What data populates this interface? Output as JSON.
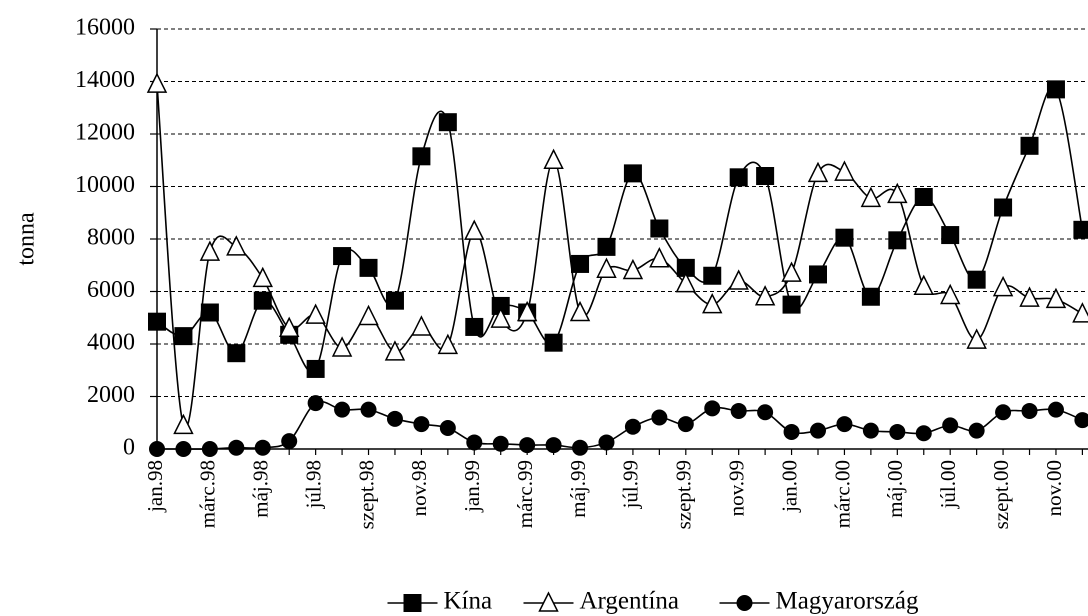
{
  "chart_data": {
    "type": "line",
    "y_label": "tonna",
    "categories": [
      "jan.98",
      null,
      "márc.98",
      null,
      "máj.98",
      null,
      "júl.98",
      null,
      "szept.98",
      null,
      "nov.98",
      null,
      "jan.99",
      null,
      "márc.99",
      null,
      "máj.99",
      null,
      "júl.99",
      null,
      "szept.99",
      null,
      "nov.99",
      null,
      "jan.00",
      null,
      "márc.00",
      null,
      "máj.00",
      null,
      "júl.00",
      null,
      "szept.00",
      null,
      "nov.00",
      null
    ],
    "series": [
      {
        "name": "Kína",
        "color": "#000000",
        "marker": "square",
        "values": [
          4850,
          4300,
          5200,
          3650,
          5650,
          4350,
          3050,
          7350,
          6900,
          5650,
          11150,
          12450,
          4650,
          5450,
          5200,
          4050,
          7050,
          7700,
          10500,
          8400,
          6900,
          6600,
          10350,
          10400,
          5500,
          6650,
          8050,
          5800,
          7950,
          9600,
          8150,
          6450,
          9200,
          11550,
          13700,
          8350
        ]
      },
      {
        "name": "Argentína",
        "color": "#000000",
        "marker": "triangle",
        "values": [
          13900,
          900,
          7500,
          7700,
          6500,
          4600,
          5100,
          3850,
          5050,
          3700,
          4650,
          3950,
          8300,
          4950,
          5200,
          11000,
          5200,
          6850,
          6800,
          7250,
          6300,
          5500,
          6400,
          5800,
          6700,
          10500,
          10550,
          9550,
          9700,
          6200,
          5850,
          4150,
          6150,
          5750,
          5700,
          5150
        ]
      },
      {
        "name": "Magyarország",
        "color": "#000000",
        "marker": "circle",
        "values": [
          0,
          0,
          0,
          50,
          50,
          300,
          1750,
          1500,
          1500,
          1150,
          950,
          800,
          250,
          200,
          150,
          150,
          50,
          250,
          850,
          1200,
          950,
          1550,
          1450,
          1400,
          650,
          700,
          950,
          700,
          650,
          600,
          900,
          700,
          1400,
          1450,
          1500,
          1100
        ]
      }
    ],
    "ylim": [
      0,
      16000
    ],
    "yticks": [
      0,
      2000,
      4000,
      6000,
      8000,
      10000,
      12000,
      14000,
      16000
    ],
    "grid": true,
    "smooth": true,
    "legend": "bottom"
  }
}
